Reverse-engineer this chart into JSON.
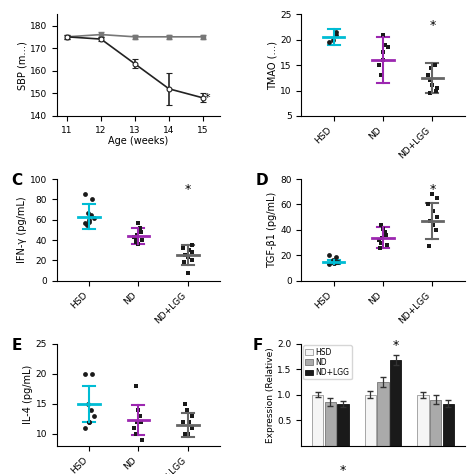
{
  "panel_A": {
    "xlabel": "Age (weeks)",
    "ylabel": "SBP (m…)",
    "x": [
      11,
      12,
      13,
      14,
      15
    ],
    "line1_y": [
      175,
      176,
      175,
      175,
      175
    ],
    "line1_err": [
      1,
      1,
      1,
      1,
      1
    ],
    "line2_y": [
      175,
      174,
      163,
      152,
      148
    ],
    "line2_err": [
      1,
      1,
      2,
      7,
      2
    ],
    "ylim": [
      140,
      185
    ],
    "yticks": [
      140,
      150,
      160,
      170,
      180
    ]
  },
  "panel_B": {
    "ylabel": "TMAO (…)",
    "categories": [
      "HSD",
      "ND",
      "ND+LGG"
    ],
    "means": [
      20.5,
      16.0,
      12.5
    ],
    "errors": [
      1.5,
      4.5,
      3.0
    ],
    "points_HSD": [
      19.5,
      21.0,
      20.0,
      21.5
    ],
    "points_ND": [
      18.5,
      21.0,
      16.0,
      15.0,
      13.0,
      17.5,
      19.0
    ],
    "points_NDLGG": [
      15.0,
      14.5,
      13.0,
      12.0,
      10.0,
      9.5,
      11.0,
      10.5
    ],
    "ylim": [
      5,
      25
    ],
    "yticks": [
      5,
      10,
      15,
      20,
      25
    ],
    "star": true,
    "colors": [
      "#00bcd4",
      "#9c27b0",
      "#666666"
    ]
  },
  "panel_C": {
    "ylabel": "IFN-γ (pg/mL)",
    "categories": [
      "HSD",
      "ND",
      "ND+LGG"
    ],
    "means": [
      63,
      44,
      25
    ],
    "errors": [
      12,
      8,
      10
    ],
    "points_HSD": [
      85,
      80,
      67,
      65,
      62,
      60,
      58,
      57,
      55
    ],
    "points_ND": [
      57,
      52,
      48,
      45,
      43,
      42,
      40,
      38,
      36
    ],
    "points_NDLGG": [
      35,
      32,
      30,
      28,
      25,
      23,
      20,
      18,
      8
    ],
    "ylim": [
      0,
      100
    ],
    "yticks": [
      0,
      20,
      40,
      60,
      80,
      100
    ],
    "star": true,
    "colors": [
      "#00bcd4",
      "#9c27b0",
      "#666666"
    ]
  },
  "panel_D": {
    "ylabel": "TGF-β1 (pg/mL)",
    "categories": [
      "HSD",
      "ND",
      "ND+LGG"
    ],
    "means": [
      14.5,
      34,
      47
    ],
    "errors": [
      1.5,
      8,
      14
    ],
    "points_HSD": [
      20,
      19,
      16,
      15,
      15,
      14,
      14,
      13
    ],
    "points_ND": [
      44,
      41,
      38,
      36,
      34,
      32,
      30,
      28,
      26
    ],
    "points_NDLGG": [
      68,
      65,
      60,
      55,
      50,
      47,
      44,
      40,
      27
    ],
    "ylim": [
      0,
      80
    ],
    "yticks": [
      0,
      20,
      40,
      60,
      80
    ],
    "star": true,
    "colors": [
      "#00bcd4",
      "#9c27b0",
      "#666666"
    ]
  },
  "panel_E": {
    "ylabel": "IL-4 (pg/mL)",
    "categories": [
      "HSD",
      "ND",
      "ND+LGG"
    ],
    "means": [
      15,
      12.2,
      11.5
    ],
    "errors": [
      3.0,
      2.5,
      2.0
    ],
    "points_HSD": [
      20,
      20,
      15,
      14,
      13,
      12,
      12,
      11
    ],
    "points_ND": [
      18,
      14,
      13,
      12,
      12,
      11,
      10,
      9
    ],
    "points_NDLGG": [
      15,
      14,
      13,
      12,
      12,
      11,
      10,
      10
    ],
    "ylim": [
      8,
      25
    ],
    "yticks": [
      10,
      15,
      20,
      25
    ],
    "star": false,
    "colors": [
      "#00bcd4",
      "#9c27b0",
      "#666666"
    ]
  },
  "panel_F": {
    "ylabel": "Expression (Relative)",
    "bar_values": {
      "HSD": [
        1.0,
        1.0,
        1.0
      ],
      "ND": [
        0.85,
        1.25,
        0.9
      ],
      "NDLGG": [
        0.82,
        1.68,
        0.82
      ]
    },
    "bar_errors": {
      "HSD": [
        0.05,
        0.07,
        0.06
      ],
      "ND": [
        0.08,
        0.1,
        0.09
      ],
      "NDLGG": [
        0.06,
        0.1,
        0.07
      ]
    },
    "ylim": [
      0,
      2.0
    ],
    "yticks": [
      0.5,
      1.0,
      1.5,
      2.0
    ],
    "colors": {
      "HSD": "#f5f5f5",
      "ND": "#aaaaaa",
      "NDLGG": "#1a1a1a"
    },
    "legend_labels": [
      "HSD",
      "ND",
      "ND+LGG"
    ]
  },
  "bg_color": "#ffffff"
}
